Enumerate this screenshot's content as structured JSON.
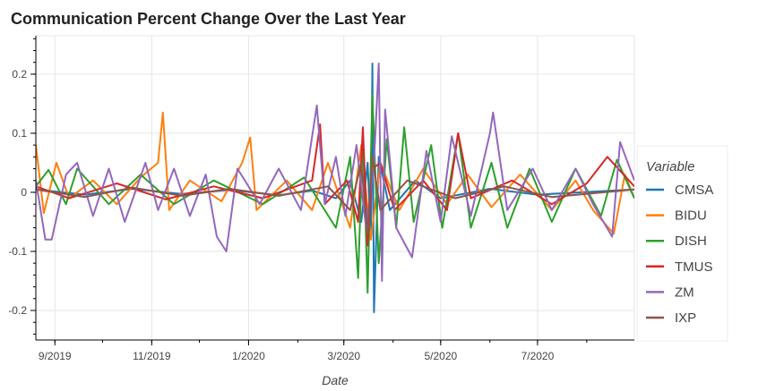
{
  "chart_data": {
    "type": "line",
    "title": "Communication Percent Change Over the Last Year",
    "xlabel": "Date",
    "ylabel": "",
    "x_tick_labels": [
      "9/2019",
      "11/2019",
      "1/2020",
      "3/2020",
      "5/2020",
      "7/2020"
    ],
    "x_tick_dates": [
      "2019-09-01",
      "2019-11-01",
      "2020-01-01",
      "2020-03-01",
      "2020-05-01",
      "2020-07-01"
    ],
    "x_range": [
      "2019-08-20",
      "2020-08-31"
    ],
    "y_tick_labels": [
      "-0.2",
      "-0.1",
      "0",
      "0.1",
      "0.2"
    ],
    "y_ticks": [
      -0.2,
      -0.1,
      0,
      0.1,
      0.2
    ],
    "ylim": [
      -0.25,
      0.265
    ],
    "grid": true,
    "legend_title": "Variable",
    "legend_position": "right",
    "series": [
      {
        "name": "CMSA",
        "color": "#1f77b4",
        "points": [
          [
            "2019-08-20",
            0.005
          ],
          [
            "2019-09-20",
            -0.004
          ],
          [
            "2019-10-20",
            0.006
          ],
          [
            "2019-11-20",
            -0.003
          ],
          [
            "2019-12-20",
            0.004
          ],
          [
            "2020-01-20",
            -0.005
          ],
          [
            "2020-02-10",
            0.003
          ],
          [
            "2020-02-25",
            -0.01
          ],
          [
            "2020-03-05",
            0.02
          ],
          [
            "2020-03-12",
            -0.05
          ],
          [
            "2020-03-16",
            0.05
          ],
          [
            "2020-03-18",
            -0.08
          ],
          [
            "2020-03-19",
            0.218
          ],
          [
            "2020-03-20",
            -0.203
          ],
          [
            "2020-03-23",
            0.06
          ],
          [
            "2020-03-30",
            -0.03
          ],
          [
            "2020-04-15",
            0.02
          ],
          [
            "2020-05-01",
            -0.01
          ],
          [
            "2020-06-01",
            0.006
          ],
          [
            "2020-07-01",
            -0.004
          ],
          [
            "2020-08-31",
            0.005
          ]
        ]
      },
      {
        "name": "BIDU",
        "color": "#ff7f0e",
        "points": [
          [
            "2019-08-20",
            0.08
          ],
          [
            "2019-08-25",
            -0.035
          ],
          [
            "2019-09-02",
            0.05
          ],
          [
            "2019-09-10",
            -0.01
          ],
          [
            "2019-09-25",
            0.02
          ],
          [
            "2019-10-10",
            -0.02
          ],
          [
            "2019-10-25",
            0.025
          ],
          [
            "2019-11-05",
            0.05
          ],
          [
            "2019-11-08",
            0.135
          ],
          [
            "2019-11-12",
            -0.03
          ],
          [
            "2019-11-25",
            0.02
          ],
          [
            "2019-12-15",
            -0.015
          ],
          [
            "2019-12-28",
            0.05
          ],
          [
            "2020-01-02",
            0.093
          ],
          [
            "2020-01-06",
            -0.03
          ],
          [
            "2020-01-25",
            0.02
          ],
          [
            "2020-02-10",
            -0.03
          ],
          [
            "2020-02-20",
            0.05
          ],
          [
            "2020-03-05",
            -0.06
          ],
          [
            "2020-03-12",
            0.08
          ],
          [
            "2020-03-18",
            -0.08
          ],
          [
            "2020-03-24",
            0.05
          ],
          [
            "2020-04-05",
            -0.03
          ],
          [
            "2020-04-20",
            0.04
          ],
          [
            "2020-05-05",
            -0.02
          ],
          [
            "2020-05-18",
            0.03
          ],
          [
            "2020-06-02",
            -0.025
          ],
          [
            "2020-06-20",
            0.03
          ],
          [
            "2020-07-10",
            -0.03
          ],
          [
            "2020-07-25",
            0.02
          ],
          [
            "2020-08-05",
            -0.03
          ],
          [
            "2020-08-18",
            -0.07
          ],
          [
            "2020-08-25",
            0.03
          ],
          [
            "2020-08-31",
            -0.01
          ]
        ]
      },
      {
        "name": "DISH",
        "color": "#2ca02c",
        "points": [
          [
            "2019-08-20",
            0.01
          ],
          [
            "2019-08-28",
            0.038
          ],
          [
            "2019-09-08",
            -0.02
          ],
          [
            "2019-09-15",
            0.04
          ],
          [
            "2019-10-05",
            -0.02
          ],
          [
            "2019-10-25",
            0.03
          ],
          [
            "2019-11-15",
            -0.02
          ],
          [
            "2019-12-10",
            0.02
          ],
          [
            "2020-01-10",
            -0.02
          ],
          [
            "2020-02-05",
            0.025
          ],
          [
            "2020-02-25",
            -0.06
          ],
          [
            "2020-03-05",
            0.06
          ],
          [
            "2020-03-10",
            -0.145
          ],
          [
            "2020-03-13",
            0.1
          ],
          [
            "2020-03-16",
            -0.17
          ],
          [
            "2020-03-19",
            0.165
          ],
          [
            "2020-03-23",
            -0.12
          ],
          [
            "2020-03-28",
            0.09
          ],
          [
            "2020-04-03",
            -0.06
          ],
          [
            "2020-04-08",
            0.11
          ],
          [
            "2020-04-14",
            -0.05
          ],
          [
            "2020-04-25",
            0.08
          ],
          [
            "2020-05-02",
            -0.06
          ],
          [
            "2020-05-12",
            0.1
          ],
          [
            "2020-05-20",
            -0.06
          ],
          [
            "2020-06-02",
            0.05
          ],
          [
            "2020-06-12",
            -0.06
          ],
          [
            "2020-06-26",
            0.04
          ],
          [
            "2020-07-10",
            -0.05
          ],
          [
            "2020-07-25",
            0.04
          ],
          [
            "2020-08-10",
            -0.04
          ],
          [
            "2020-08-20",
            0.055
          ],
          [
            "2020-08-31",
            -0.01
          ]
        ]
      },
      {
        "name": "TMUS",
        "color": "#d62728",
        "points": [
          [
            "2019-08-20",
            0.01
          ],
          [
            "2019-09-10",
            -0.01
          ],
          [
            "2019-10-10",
            0.015
          ],
          [
            "2019-11-10",
            -0.012
          ],
          [
            "2019-12-10",
            0.01
          ],
          [
            "2020-01-10",
            -0.01
          ],
          [
            "2020-02-10",
            0.02
          ],
          [
            "2020-02-15",
            0.115
          ],
          [
            "2020-02-18",
            -0.02
          ],
          [
            "2020-03-03",
            0.02
          ],
          [
            "2020-03-10",
            -0.05
          ],
          [
            "2020-03-13",
            0.11
          ],
          [
            "2020-03-16",
            -0.09
          ],
          [
            "2020-03-19",
            0.04
          ],
          [
            "2020-03-24",
            0.05
          ],
          [
            "2020-04-02",
            -0.03
          ],
          [
            "2020-04-20",
            0.02
          ],
          [
            "2020-05-05",
            -0.03
          ],
          [
            "2020-05-12",
            0.1
          ],
          [
            "2020-05-20",
            -0.01
          ],
          [
            "2020-06-15",
            0.02
          ],
          [
            "2020-07-10",
            -0.02
          ],
          [
            "2020-08-01",
            0.015
          ],
          [
            "2020-08-14",
            0.06
          ],
          [
            "2020-08-31",
            0.01
          ]
        ]
      },
      {
        "name": "ZM",
        "color": "#9467bd",
        "points": [
          [
            "2019-08-20",
            0.02
          ],
          [
            "2019-08-26",
            -0.08
          ],
          [
            "2019-08-30",
            -0.08
          ],
          [
            "2019-09-08",
            0.03
          ],
          [
            "2019-09-15",
            0.05
          ],
          [
            "2019-09-25",
            -0.04
          ],
          [
            "2019-10-05",
            0.04
          ],
          [
            "2019-10-15",
            -0.05
          ],
          [
            "2019-10-28",
            0.05
          ],
          [
            "2019-11-05",
            -0.03
          ],
          [
            "2019-11-15",
            0.04
          ],
          [
            "2019-11-25",
            -0.04
          ],
          [
            "2019-12-05",
            0.03
          ],
          [
            "2019-12-12",
            -0.075
          ],
          [
            "2019-12-18",
            -0.1
          ],
          [
            "2019-12-25",
            0.04
          ],
          [
            "2020-01-08",
            -0.02
          ],
          [
            "2020-01-20",
            0.04
          ],
          [
            "2020-02-03",
            -0.03
          ],
          [
            "2020-02-13",
            0.147
          ],
          [
            "2020-02-18",
            -0.02
          ],
          [
            "2020-02-25",
            0.06
          ],
          [
            "2020-03-02",
            -0.04
          ],
          [
            "2020-03-09",
            0.08
          ],
          [
            "2020-03-15",
            -0.06
          ],
          [
            "2020-03-20",
            0.05
          ],
          [
            "2020-03-23",
            0.218
          ],
          [
            "2020-03-25",
            -0.15
          ],
          [
            "2020-03-27",
            0.14
          ],
          [
            "2020-04-03",
            -0.06
          ],
          [
            "2020-04-13",
            -0.11
          ],
          [
            "2020-04-22",
            0.07
          ],
          [
            "2020-05-01",
            -0.05
          ],
          [
            "2020-05-08",
            0.095
          ],
          [
            "2020-05-20",
            -0.04
          ],
          [
            "2020-06-01",
            0.1
          ],
          [
            "2020-06-03",
            0.135
          ],
          [
            "2020-06-12",
            -0.03
          ],
          [
            "2020-06-28",
            0.04
          ],
          [
            "2020-07-10",
            -0.03
          ],
          [
            "2020-07-25",
            0.04
          ],
          [
            "2020-08-05",
            -0.02
          ],
          [
            "2020-08-17",
            -0.075
          ],
          [
            "2020-08-22",
            0.085
          ],
          [
            "2020-08-31",
            0.02
          ]
        ]
      },
      {
        "name": "IXP",
        "color": "#8c564b",
        "points": [
          [
            "2019-08-20",
            0.005
          ],
          [
            "2019-09-20",
            -0.008
          ],
          [
            "2019-10-20",
            0.008
          ],
          [
            "2019-11-20",
            -0.006
          ],
          [
            "2019-12-20",
            0.006
          ],
          [
            "2020-01-20",
            -0.006
          ],
          [
            "2020-02-20",
            0.01
          ],
          [
            "2020-03-05",
            -0.03
          ],
          [
            "2020-03-12",
            0.05
          ],
          [
            "2020-03-16",
            -0.07
          ],
          [
            "2020-03-19",
            0.06
          ],
          [
            "2020-03-24",
            -0.03
          ],
          [
            "2020-04-10",
            0.02
          ],
          [
            "2020-05-10",
            -0.01
          ],
          [
            "2020-06-10",
            0.01
          ],
          [
            "2020-07-10",
            -0.008
          ],
          [
            "2020-08-31",
            0.005
          ]
        ]
      }
    ]
  }
}
